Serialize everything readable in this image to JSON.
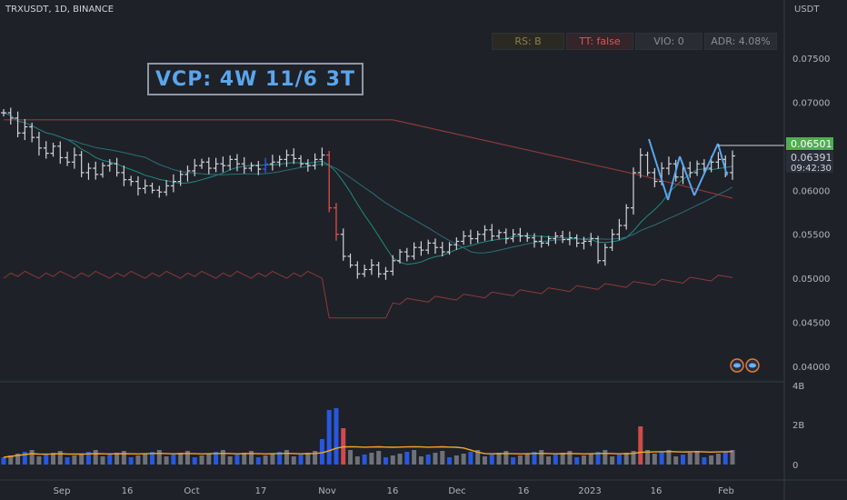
{
  "symbol_line": "TRXUSDT, 1D, BINANCE",
  "unit": "USDT",
  "annotation": "VCP: 4W 11/6 3T",
  "badges": [
    {
      "label": "RS: B",
      "color": "#8d7f50",
      "bg": "#2b2a22"
    },
    {
      "label": "TT: false",
      "color": "#e0535a",
      "bg": "#33252a"
    },
    {
      "label": "VIO: 0",
      "color": "#8a8d96",
      "bg": "#2a2c33"
    },
    {
      "label": "ADR: 4.08%",
      "color": "#8a8d96",
      "bg": "#2a2c33"
    }
  ],
  "price_axis": {
    "ticks": [
      "0.07500",
      "0.07000",
      "0.06500",
      "0.06000",
      "0.05500",
      "0.05000",
      "0.04500",
      "0.04000"
    ],
    "range": [
      0.0393,
      0.08
    ]
  },
  "price_labels": {
    "last": "0.06501",
    "current": "0.06391",
    "countdown": "09:42:30",
    "last_color": "#4caf50"
  },
  "volume_axis": {
    "ticks": [
      "4B",
      "2B",
      "0"
    ]
  },
  "x_axis": {
    "labels": [
      "Sep",
      "16",
      "Oct",
      "17",
      "Nov",
      "16",
      "Dec",
      "16",
      "2023",
      "16",
      "Feb"
    ]
  },
  "chart_data": {
    "type": "candlestick",
    "symbol": "TRXUSDT",
    "interval": "1D",
    "close_approx": [
      0.0688,
      0.0682,
      0.0665,
      0.0672,
      0.066,
      0.0648,
      0.0642,
      0.065,
      0.0637,
      0.0632,
      0.064,
      0.062,
      0.0625,
      0.0618,
      0.0628,
      0.063,
      0.062,
      0.0612,
      0.061,
      0.0602,
      0.0605,
      0.06,
      0.0598,
      0.0605,
      0.061,
      0.0618,
      0.0622,
      0.0628,
      0.0632,
      0.0625,
      0.063,
      0.0628,
      0.0635,
      0.063,
      0.0625,
      0.0628,
      0.0624,
      0.063,
      0.0632,
      0.0635,
      0.064,
      0.0636,
      0.063,
      0.0628,
      0.0635,
      0.064,
      0.058,
      0.055,
      0.0525,
      0.0515,
      0.0505,
      0.051,
      0.0515,
      0.0505,
      0.0508,
      0.052,
      0.053,
      0.0525,
      0.0535,
      0.0532,
      0.054,
      0.0535,
      0.053,
      0.0538,
      0.0542,
      0.0548,
      0.0545,
      0.055,
      0.0555,
      0.0548,
      0.0552,
      0.0545,
      0.055,
      0.0548,
      0.0546,
      0.0542,
      0.054,
      0.0545,
      0.0548,
      0.0544,
      0.0546,
      0.054,
      0.0542,
      0.0545,
      0.052,
      0.0535,
      0.055,
      0.056,
      0.058,
      0.062,
      0.064,
      0.062,
      0.061,
      0.0625,
      0.063,
      0.0615,
      0.0625,
      0.062,
      0.063,
      0.0625,
      0.0632,
      0.0635,
      0.062,
      0.0639
    ],
    "volume_note": "daily volume bars, spikes in early Nov and early Jan",
    "moving_averages": 4,
    "volume_ma": true
  }
}
